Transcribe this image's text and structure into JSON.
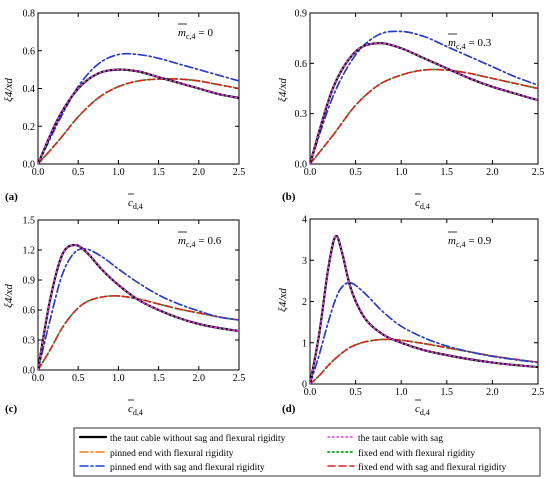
{
  "figure": {
    "legend": [
      {
        "label": "the taut cable without sag and flexural rigidity",
        "color": "#000000",
        "dash": "solid",
        "width": 2.2
      },
      {
        "label": "the taut cable with sag",
        "color": "#e040e0",
        "dash": "dot",
        "width": 1.6
      },
      {
        "label": "pinned end with flexural rigidity",
        "color": "#f07a1a",
        "dash": "dashdot",
        "width": 1.6
      },
      {
        "label": "fixed end with flexural rigidity",
        "color": "#1a9a1a",
        "dash": "dot",
        "width": 1.8
      },
      {
        "label": "pinned end with sag and flexural rigidity",
        "color": "#1d3fd6",
        "dash": "dashdot",
        "width": 1.6
      },
      {
        "label": "fixed end with sag and flexural rigidity",
        "color": "#e02020",
        "dash": "dash",
        "width": 1.6
      }
    ]
  },
  "chart_data": [
    {
      "type": "line",
      "panel": "(a)",
      "annotation": "= 0",
      "annotation_symbol": "m",
      "annotation_sub": "c,4",
      "ylabel": "ξ4/xd",
      "xlabel_symbol": "c",
      "xlabel_sub": "d,4",
      "xlim": [
        0,
        2.5
      ],
      "ylim": [
        0,
        0.8
      ],
      "xticks": [
        "0.0",
        "0.5",
        "1.0",
        "1.5",
        "2.0",
        "2.5"
      ],
      "yticks": [
        "0.0",
        "0.2",
        "0.4",
        "0.6",
        "0.8"
      ],
      "x": [
        0,
        0.25,
        0.5,
        0.75,
        1.0,
        1.25,
        1.5,
        1.75,
        2.0,
        2.25,
        2.5
      ],
      "series": [
        {
          "values": [
            0,
            0.24,
            0.4,
            0.48,
            0.5,
            0.49,
            0.46,
            0.43,
            0.4,
            0.37,
            0.35
          ],
          "style": 0
        },
        {
          "values": [
            0,
            0.24,
            0.4,
            0.48,
            0.5,
            0.49,
            0.46,
            0.43,
            0.4,
            0.37,
            0.35
          ],
          "style": 1
        },
        {
          "values": [
            0,
            0.22,
            0.41,
            0.53,
            0.58,
            0.58,
            0.56,
            0.53,
            0.5,
            0.47,
            0.44
          ],
          "style": 2
        },
        {
          "values": [
            0,
            0.12,
            0.25,
            0.35,
            0.41,
            0.44,
            0.45,
            0.45,
            0.44,
            0.42,
            0.4
          ],
          "style": 3
        },
        {
          "values": [
            0,
            0.22,
            0.41,
            0.53,
            0.58,
            0.58,
            0.56,
            0.53,
            0.5,
            0.47,
            0.44
          ],
          "style": 4
        },
        {
          "values": [
            0,
            0.12,
            0.25,
            0.35,
            0.41,
            0.44,
            0.45,
            0.45,
            0.44,
            0.42,
            0.4
          ],
          "style": 5
        }
      ]
    },
    {
      "type": "line",
      "panel": "(b)",
      "annotation": "= 0.3",
      "annotation_symbol": "m",
      "annotation_sub": "c,4",
      "ylabel": "ξ4/xd",
      "xlabel_symbol": "c",
      "xlabel_sub": "d,4",
      "xlim": [
        0,
        2.5
      ],
      "ylim": [
        0,
        0.9
      ],
      "xticks": [
        "0.0",
        "0.5",
        "1.0",
        "1.5",
        "2.0",
        "2.5"
      ],
      "yticks": [
        "0.0",
        "0.3",
        "0.6",
        "0.9"
      ],
      "x": [
        0,
        0.25,
        0.5,
        0.75,
        1.0,
        1.25,
        1.5,
        1.75,
        2.0,
        2.25,
        2.5
      ],
      "series": [
        {
          "values": [
            0,
            0.45,
            0.67,
            0.72,
            0.69,
            0.63,
            0.57,
            0.51,
            0.46,
            0.42,
            0.38
          ],
          "style": 0
        },
        {
          "values": [
            0,
            0.45,
            0.67,
            0.72,
            0.69,
            0.63,
            0.57,
            0.51,
            0.46,
            0.42,
            0.38
          ],
          "style": 1
        },
        {
          "values": [
            0,
            0.4,
            0.65,
            0.77,
            0.79,
            0.76,
            0.7,
            0.64,
            0.58,
            0.52,
            0.47
          ],
          "style": 2
        },
        {
          "values": [
            0,
            0.17,
            0.35,
            0.47,
            0.53,
            0.56,
            0.56,
            0.54,
            0.51,
            0.48,
            0.45
          ],
          "style": 3
        },
        {
          "values": [
            0,
            0.4,
            0.65,
            0.77,
            0.79,
            0.76,
            0.7,
            0.64,
            0.58,
            0.52,
            0.47
          ],
          "style": 4
        },
        {
          "values": [
            0,
            0.17,
            0.35,
            0.47,
            0.53,
            0.56,
            0.56,
            0.54,
            0.51,
            0.48,
            0.45
          ],
          "style": 5
        }
      ]
    },
    {
      "type": "line",
      "panel": "(c)",
      "annotation": "= 0.6",
      "annotation_symbol": "m",
      "annotation_sub": "c,4",
      "ylabel": "ξ4/xd",
      "xlabel_symbol": "c",
      "xlabel_sub": "d,4",
      "xlim": [
        0,
        2.5
      ],
      "ylim": [
        0,
        1.5
      ],
      "xticks": [
        "0.0",
        "0.5",
        "1.0",
        "1.5",
        "2.0",
        "2.5"
      ],
      "yticks": [
        "0.0",
        "0.3",
        "0.6",
        "0.9",
        "1.2",
        "1.5"
      ],
      "x": [
        0,
        0.15,
        0.3,
        0.45,
        0.6,
        0.8,
        1.0,
        1.25,
        1.5,
        1.75,
        2.0,
        2.25,
        2.5
      ],
      "series": [
        {
          "values": [
            0,
            0.7,
            1.15,
            1.25,
            1.18,
            1.0,
            0.85,
            0.7,
            0.6,
            0.52,
            0.46,
            0.42,
            0.39
          ],
          "style": 0
        },
        {
          "values": [
            0,
            0.7,
            1.15,
            1.25,
            1.18,
            1.0,
            0.85,
            0.7,
            0.6,
            0.52,
            0.46,
            0.42,
            0.39
          ],
          "style": 1
        },
        {
          "values": [
            0,
            0.5,
            0.95,
            1.17,
            1.21,
            1.13,
            1.01,
            0.87,
            0.75,
            0.66,
            0.59,
            0.53,
            0.5
          ],
          "style": 2
        },
        {
          "values": [
            0,
            0.2,
            0.42,
            0.58,
            0.68,
            0.73,
            0.74,
            0.71,
            0.66,
            0.61,
            0.57,
            0.53,
            0.5
          ],
          "style": 3
        },
        {
          "values": [
            0,
            0.5,
            0.95,
            1.17,
            1.21,
            1.13,
            1.01,
            0.87,
            0.75,
            0.66,
            0.59,
            0.53,
            0.5
          ],
          "style": 4
        },
        {
          "values": [
            0,
            0.2,
            0.42,
            0.58,
            0.68,
            0.73,
            0.74,
            0.71,
            0.66,
            0.61,
            0.57,
            0.53,
            0.5
          ],
          "style": 5
        }
      ]
    },
    {
      "type": "line",
      "panel": "(d)",
      "annotation": "= 0.9",
      "annotation_symbol": "m",
      "annotation_sub": "c,4",
      "ylabel": "ξ4/xd",
      "xlabel_symbol": "c",
      "xlabel_sub": "d,4",
      "xlim": [
        0,
        2.5
      ],
      "ylim": [
        0,
        4
      ],
      "xticks": [
        "0.0",
        "0.5",
        "1.0",
        "1.5",
        "2.0",
        "2.5"
      ],
      "yticks": [
        "0",
        "1",
        "2",
        "3",
        "4"
      ],
      "x": [
        0,
        0.1,
        0.2,
        0.28,
        0.35,
        0.45,
        0.6,
        0.8,
        1.0,
        1.25,
        1.5,
        1.75,
        2.0,
        2.25,
        2.5
      ],
      "series": [
        {
          "values": [
            0,
            1.2,
            2.8,
            3.58,
            3.2,
            2.3,
            1.6,
            1.2,
            1.0,
            0.82,
            0.7,
            0.6,
            0.52,
            0.46,
            0.41
          ],
          "style": 0
        },
        {
          "values": [
            0,
            1.2,
            2.8,
            3.58,
            3.2,
            2.3,
            1.6,
            1.2,
            1.0,
            0.82,
            0.7,
            0.6,
            0.52,
            0.46,
            0.41
          ],
          "style": 1
        },
        {
          "values": [
            0,
            0.7,
            1.5,
            2.05,
            2.35,
            2.45,
            2.2,
            1.75,
            1.4,
            1.12,
            0.92,
            0.78,
            0.67,
            0.59,
            0.52
          ],
          "style": 2
        },
        {
          "values": [
            0,
            0.2,
            0.45,
            0.62,
            0.75,
            0.9,
            1.02,
            1.08,
            1.06,
            0.98,
            0.88,
            0.78,
            0.68,
            0.6,
            0.53
          ],
          "style": 3
        },
        {
          "values": [
            0,
            0.7,
            1.5,
            2.05,
            2.35,
            2.45,
            2.2,
            1.75,
            1.4,
            1.12,
            0.92,
            0.78,
            0.67,
            0.59,
            0.52
          ],
          "style": 4
        },
        {
          "values": [
            0,
            0.2,
            0.45,
            0.62,
            0.75,
            0.9,
            1.02,
            1.08,
            1.06,
            0.98,
            0.88,
            0.78,
            0.68,
            0.6,
            0.53
          ],
          "style": 5
        }
      ]
    }
  ]
}
